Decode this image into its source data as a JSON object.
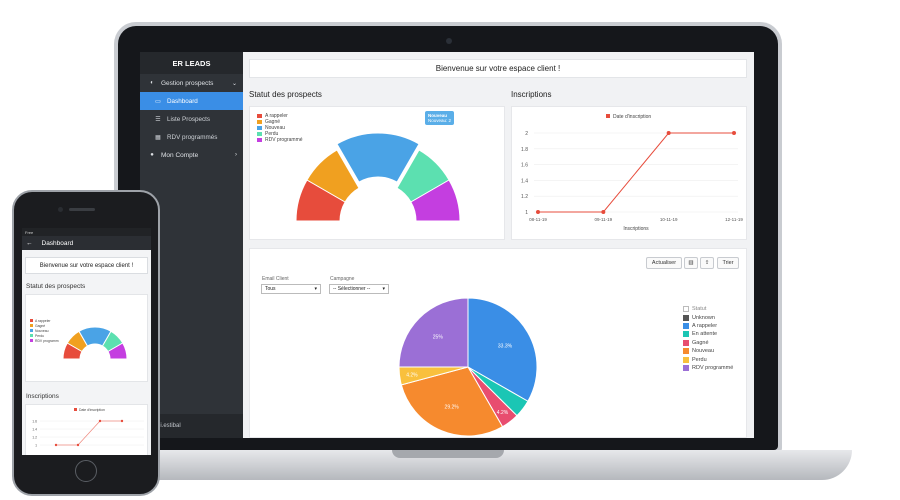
{
  "sidebar": {
    "brand": "ER LEADS",
    "group_label": "Gestion prospects",
    "items": [
      {
        "label": "Dashboard",
        "active": true
      },
      {
        "label": "Liste Prospects"
      },
      {
        "label": "RDV programmés"
      }
    ],
    "account_label": "Mon Compte",
    "user": "remi.estibal"
  },
  "welcome": "Bienvenue sur votre espace client !",
  "prospects": {
    "title": "Statut des prospects",
    "legend": [
      {
        "label": "A rappeler",
        "color": "#e74c3c"
      },
      {
        "label": "Gagné",
        "color": "#f0a020"
      },
      {
        "label": "Nouveau",
        "color": "#4aa3e6"
      },
      {
        "label": "Perdu",
        "color": "#5ce0b0"
      },
      {
        "label": "RDV programmé",
        "color": "#c43ee0"
      }
    ],
    "tooltip_title": "Nouveau",
    "tooltip_value": "Nouveau: 2"
  },
  "inscriptions": {
    "title": "Inscriptions",
    "legend": "Date d'inscription",
    "xlabel": "Inscriptions"
  },
  "chart_data": [
    {
      "type": "pie",
      "title": "Statut des prospects",
      "labels": [
        "A rappeler",
        "Gagné",
        "Nouveau",
        "Perdu",
        "RDV programmé"
      ],
      "values": [
        1,
        1,
        2,
        1,
        1
      ]
    },
    {
      "type": "line",
      "title": "Inscriptions",
      "xlabel": "Inscriptions",
      "categories": [
        "08-11-19",
        "09-11-19",
        "10-11-19",
        "12-11-19"
      ],
      "series": [
        {
          "name": "Date d'inscription",
          "values": [
            1,
            1,
            2,
            2
          ]
        }
      ],
      "yticks": [
        "1",
        "1.2",
        "1.4",
        "1.6",
        "1.8",
        "2"
      ],
      "ylim": [
        1,
        2
      ]
    },
    {
      "type": "pie",
      "labels": [
        "Unknown",
        "A rappeler",
        "En attente",
        "Gagné",
        "Nouveau",
        "Perdu",
        "RDV programmé"
      ],
      "values": [
        0,
        33.3,
        4.2,
        4.2,
        29.2,
        4.2,
        25
      ],
      "value_labels": [
        "",
        "33.3%",
        "",
        "4.2%",
        "29.2%",
        "4.2%",
        "25%"
      ]
    }
  ],
  "toolbar": {
    "update": "Actualiser",
    "sort": "Trier"
  },
  "filters": {
    "email_label": "Email Client",
    "email_value": "Tous",
    "campaign_label": "Campagne",
    "campaign_value": "-- Sélectionner --"
  },
  "status_legend": {
    "header": "Statut",
    "items": [
      {
        "label": "Unknown",
        "color": "#555555"
      },
      {
        "label": "A rappeler",
        "color": "#3a8ee6"
      },
      {
        "label": "En attente",
        "color": "#1bc6b4"
      },
      {
        "label": "Gagné",
        "color": "#e84d6f"
      },
      {
        "label": "Nouveau",
        "color": "#f68a2e"
      },
      {
        "label": "Perdu",
        "color": "#f9c03d"
      },
      {
        "label": "RDV programmé",
        "color": "#9b6fd6"
      }
    ]
  },
  "phone": {
    "status_text": "Free",
    "header": "Dashboard",
    "welcome": "Bienvenue sur votre espace client !",
    "prospects_title": "Statut des prospects",
    "inscriptions_title": "Inscriptions",
    "legend": [
      "A rappeler",
      "Gagné",
      "Nouveau",
      "Perdu",
      "RDV programm"
    ],
    "line_legend": "Date d'inscription",
    "yticks": [
      "1.6",
      "1.4",
      "1.2",
      "1"
    ]
  }
}
